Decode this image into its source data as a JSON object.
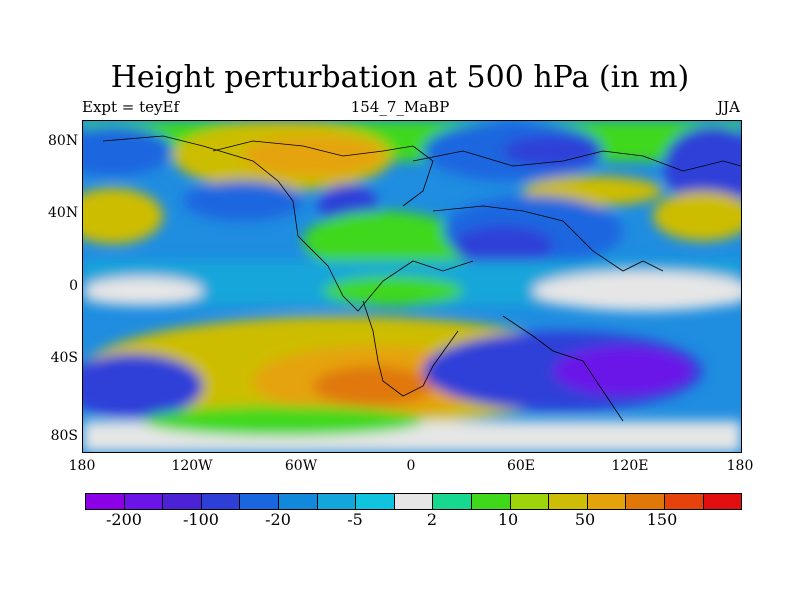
{
  "title": "Height perturbation at 500 hPa (in m)",
  "subtitle_left": "Expt = teyEf",
  "subtitle_center": "154_7_MaBP",
  "subtitle_right": "JJA",
  "lat_ticks": [
    "80N",
    "40N",
    "0",
    "40S",
    "80S"
  ],
  "lon_ticks": [
    "180",
    "120W",
    "60W",
    "0",
    "60E",
    "120E",
    "180"
  ],
  "legend": {
    "colors": [
      "#8b00e6",
      "#6a14e8",
      "#4b22d6",
      "#2e3fd8",
      "#1a66e0",
      "#1188dc",
      "#12a6da",
      "#10c4e0",
      "#e6e6e6",
      "#18d890",
      "#3fd81a",
      "#9cd60a",
      "#cdbd06",
      "#e5a30a",
      "#e07808",
      "#e6430c",
      "#e10f0f"
    ],
    "labels": [
      "-200",
      "-100",
      "-20",
      "-5",
      "2",
      "10",
      "50",
      "150"
    ]
  }
}
